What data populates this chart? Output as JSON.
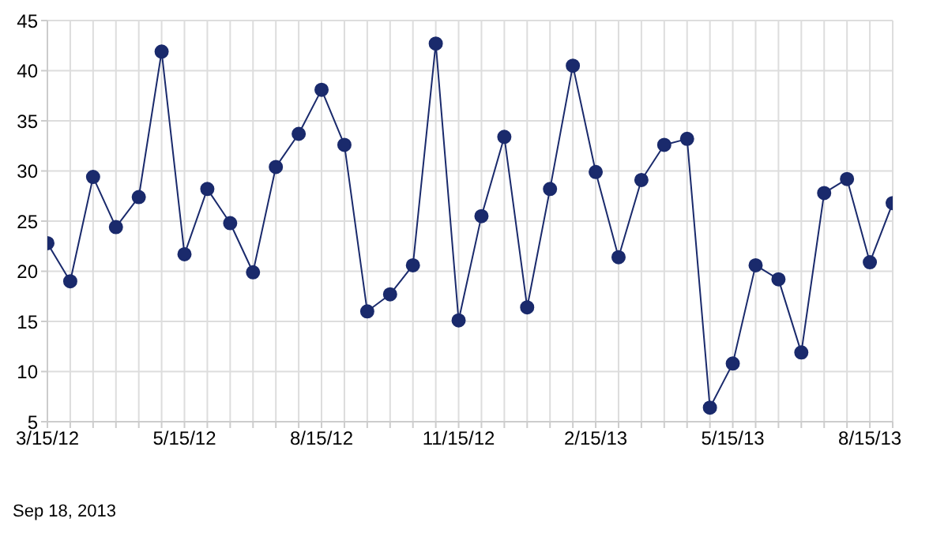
{
  "chart_data": {
    "type": "line",
    "categories": [
      "3/15/12",
      null,
      null,
      null,
      null,
      null,
      "5/15/12",
      null,
      null,
      null,
      null,
      null,
      "8/15/12",
      null,
      null,
      null,
      null,
      null,
      "11/15/12",
      null,
      null,
      null,
      null,
      null,
      "2/15/13",
      null,
      null,
      null,
      null,
      null,
      "5/15/13",
      null,
      null,
      null,
      null,
      null,
      "8/15/13",
      null
    ],
    "series": [
      {
        "color": "#1a2a6c",
        "values": [
          22.8,
          19.0,
          29.4,
          24.4,
          27.4,
          41.9,
          21.7,
          28.2,
          24.8,
          19.9,
          30.4,
          33.7,
          38.1,
          32.6,
          16.0,
          17.7,
          20.6,
          42.7,
          15.1,
          25.5,
          33.4,
          16.4,
          28.2,
          40.5,
          29.9,
          21.4,
          29.1,
          32.6,
          33.2,
          6.4,
          10.8,
          20.6,
          19.2,
          11.9,
          27.8,
          29.2,
          20.9,
          26.8
        ]
      }
    ],
    "ylim": [
      5,
      45
    ],
    "yticks": [
      5,
      10,
      15,
      20,
      25,
      30,
      35,
      40,
      45
    ],
    "grid": true,
    "marker": "circle",
    "line_style": "solid",
    "legend": false,
    "annotations": [
      "Sep 18, 2013"
    ]
  }
}
